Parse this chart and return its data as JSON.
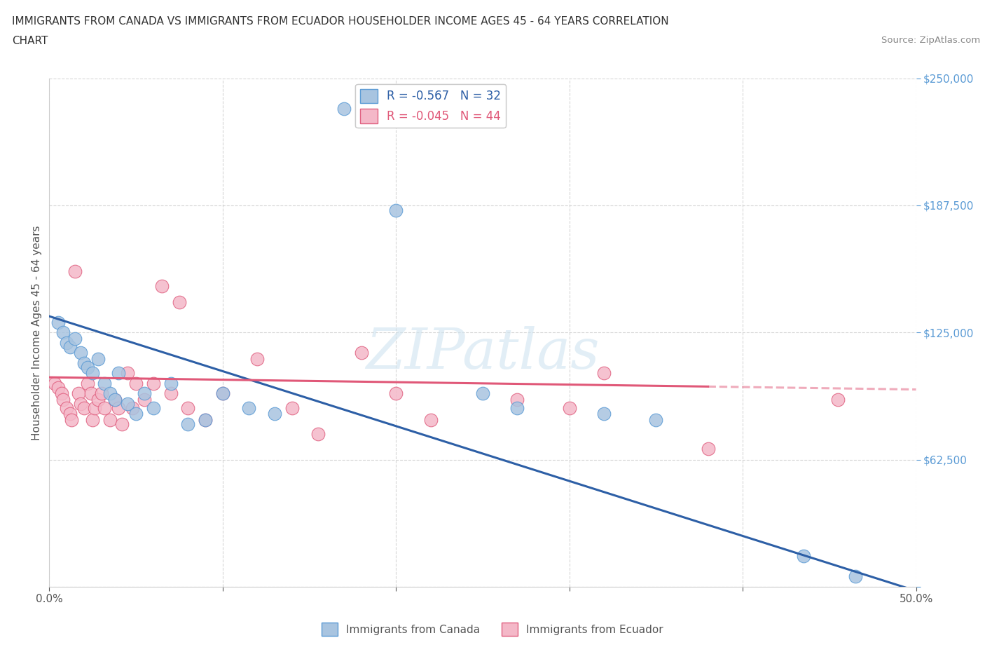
{
  "title_line1": "IMMIGRANTS FROM CANADA VS IMMIGRANTS FROM ECUADOR HOUSEHOLDER INCOME AGES 45 - 64 YEARS CORRELATION",
  "title_line2": "CHART",
  "source": "Source: ZipAtlas.com",
  "ylabel": "Householder Income Ages 45 - 64 years",
  "xlim": [
    0.0,
    0.5
  ],
  "ylim": [
    0,
    250000
  ],
  "yticks": [
    0,
    62500,
    125000,
    187500,
    250000
  ],
  "ytick_labels_right": [
    "",
    "$62,500",
    "$125,000",
    "$187,500",
    "$250,000"
  ],
  "xticks": [
    0.0,
    0.1,
    0.2,
    0.3,
    0.4,
    0.5
  ],
  "xtick_labels": [
    "0.0%",
    "",
    "",
    "",
    "",
    "50.0%"
  ],
  "watermark": "ZIPatlas",
  "canada_color": "#a8c4e0",
  "canada_edge_color": "#5b9bd5",
  "ecuador_color": "#f4b8c8",
  "ecuador_edge_color": "#e06080",
  "canada_line_color": "#2d5fa6",
  "ecuador_line_color": "#e05878",
  "R_canada": -0.567,
  "N_canada": 32,
  "R_ecuador": -0.045,
  "N_ecuador": 44,
  "canada_x": [
    0.005,
    0.008,
    0.01,
    0.012,
    0.015,
    0.018,
    0.02,
    0.022,
    0.025,
    0.028,
    0.032,
    0.035,
    0.038,
    0.04,
    0.045,
    0.05,
    0.055,
    0.06,
    0.07,
    0.08,
    0.09,
    0.1,
    0.115,
    0.13,
    0.17,
    0.2,
    0.25,
    0.27,
    0.32,
    0.35,
    0.435,
    0.465
  ],
  "canada_y": [
    130000,
    125000,
    120000,
    118000,
    122000,
    115000,
    110000,
    108000,
    105000,
    112000,
    100000,
    95000,
    92000,
    105000,
    90000,
    85000,
    95000,
    88000,
    100000,
    80000,
    82000,
    95000,
    88000,
    85000,
    235000,
    185000,
    95000,
    88000,
    85000,
    82000,
    15000,
    5000
  ],
  "ecuador_x": [
    0.003,
    0.005,
    0.007,
    0.008,
    0.01,
    0.012,
    0.013,
    0.015,
    0.017,
    0.018,
    0.02,
    0.022,
    0.024,
    0.025,
    0.026,
    0.028,
    0.03,
    0.032,
    0.035,
    0.038,
    0.04,
    0.042,
    0.045,
    0.048,
    0.05,
    0.055,
    0.06,
    0.065,
    0.07,
    0.075,
    0.08,
    0.09,
    0.1,
    0.12,
    0.14,
    0.155,
    0.18,
    0.2,
    0.22,
    0.27,
    0.3,
    0.32,
    0.38,
    0.455
  ],
  "ecuador_y": [
    100000,
    98000,
    95000,
    92000,
    88000,
    85000,
    82000,
    155000,
    95000,
    90000,
    88000,
    100000,
    95000,
    82000,
    88000,
    92000,
    95000,
    88000,
    82000,
    92000,
    88000,
    80000,
    105000,
    88000,
    100000,
    92000,
    100000,
    148000,
    95000,
    140000,
    88000,
    82000,
    95000,
    112000,
    88000,
    75000,
    115000,
    95000,
    82000,
    92000,
    88000,
    105000,
    68000,
    92000
  ],
  "background_color": "#ffffff",
  "grid_color": "#cccccc",
  "title_color": "#333333",
  "axis_label_color": "#555555",
  "ytick_color": "#5b9bd5",
  "legend_R_color_canada": "#2d5fa6",
  "legend_R_color_ecuador": "#e05878"
}
